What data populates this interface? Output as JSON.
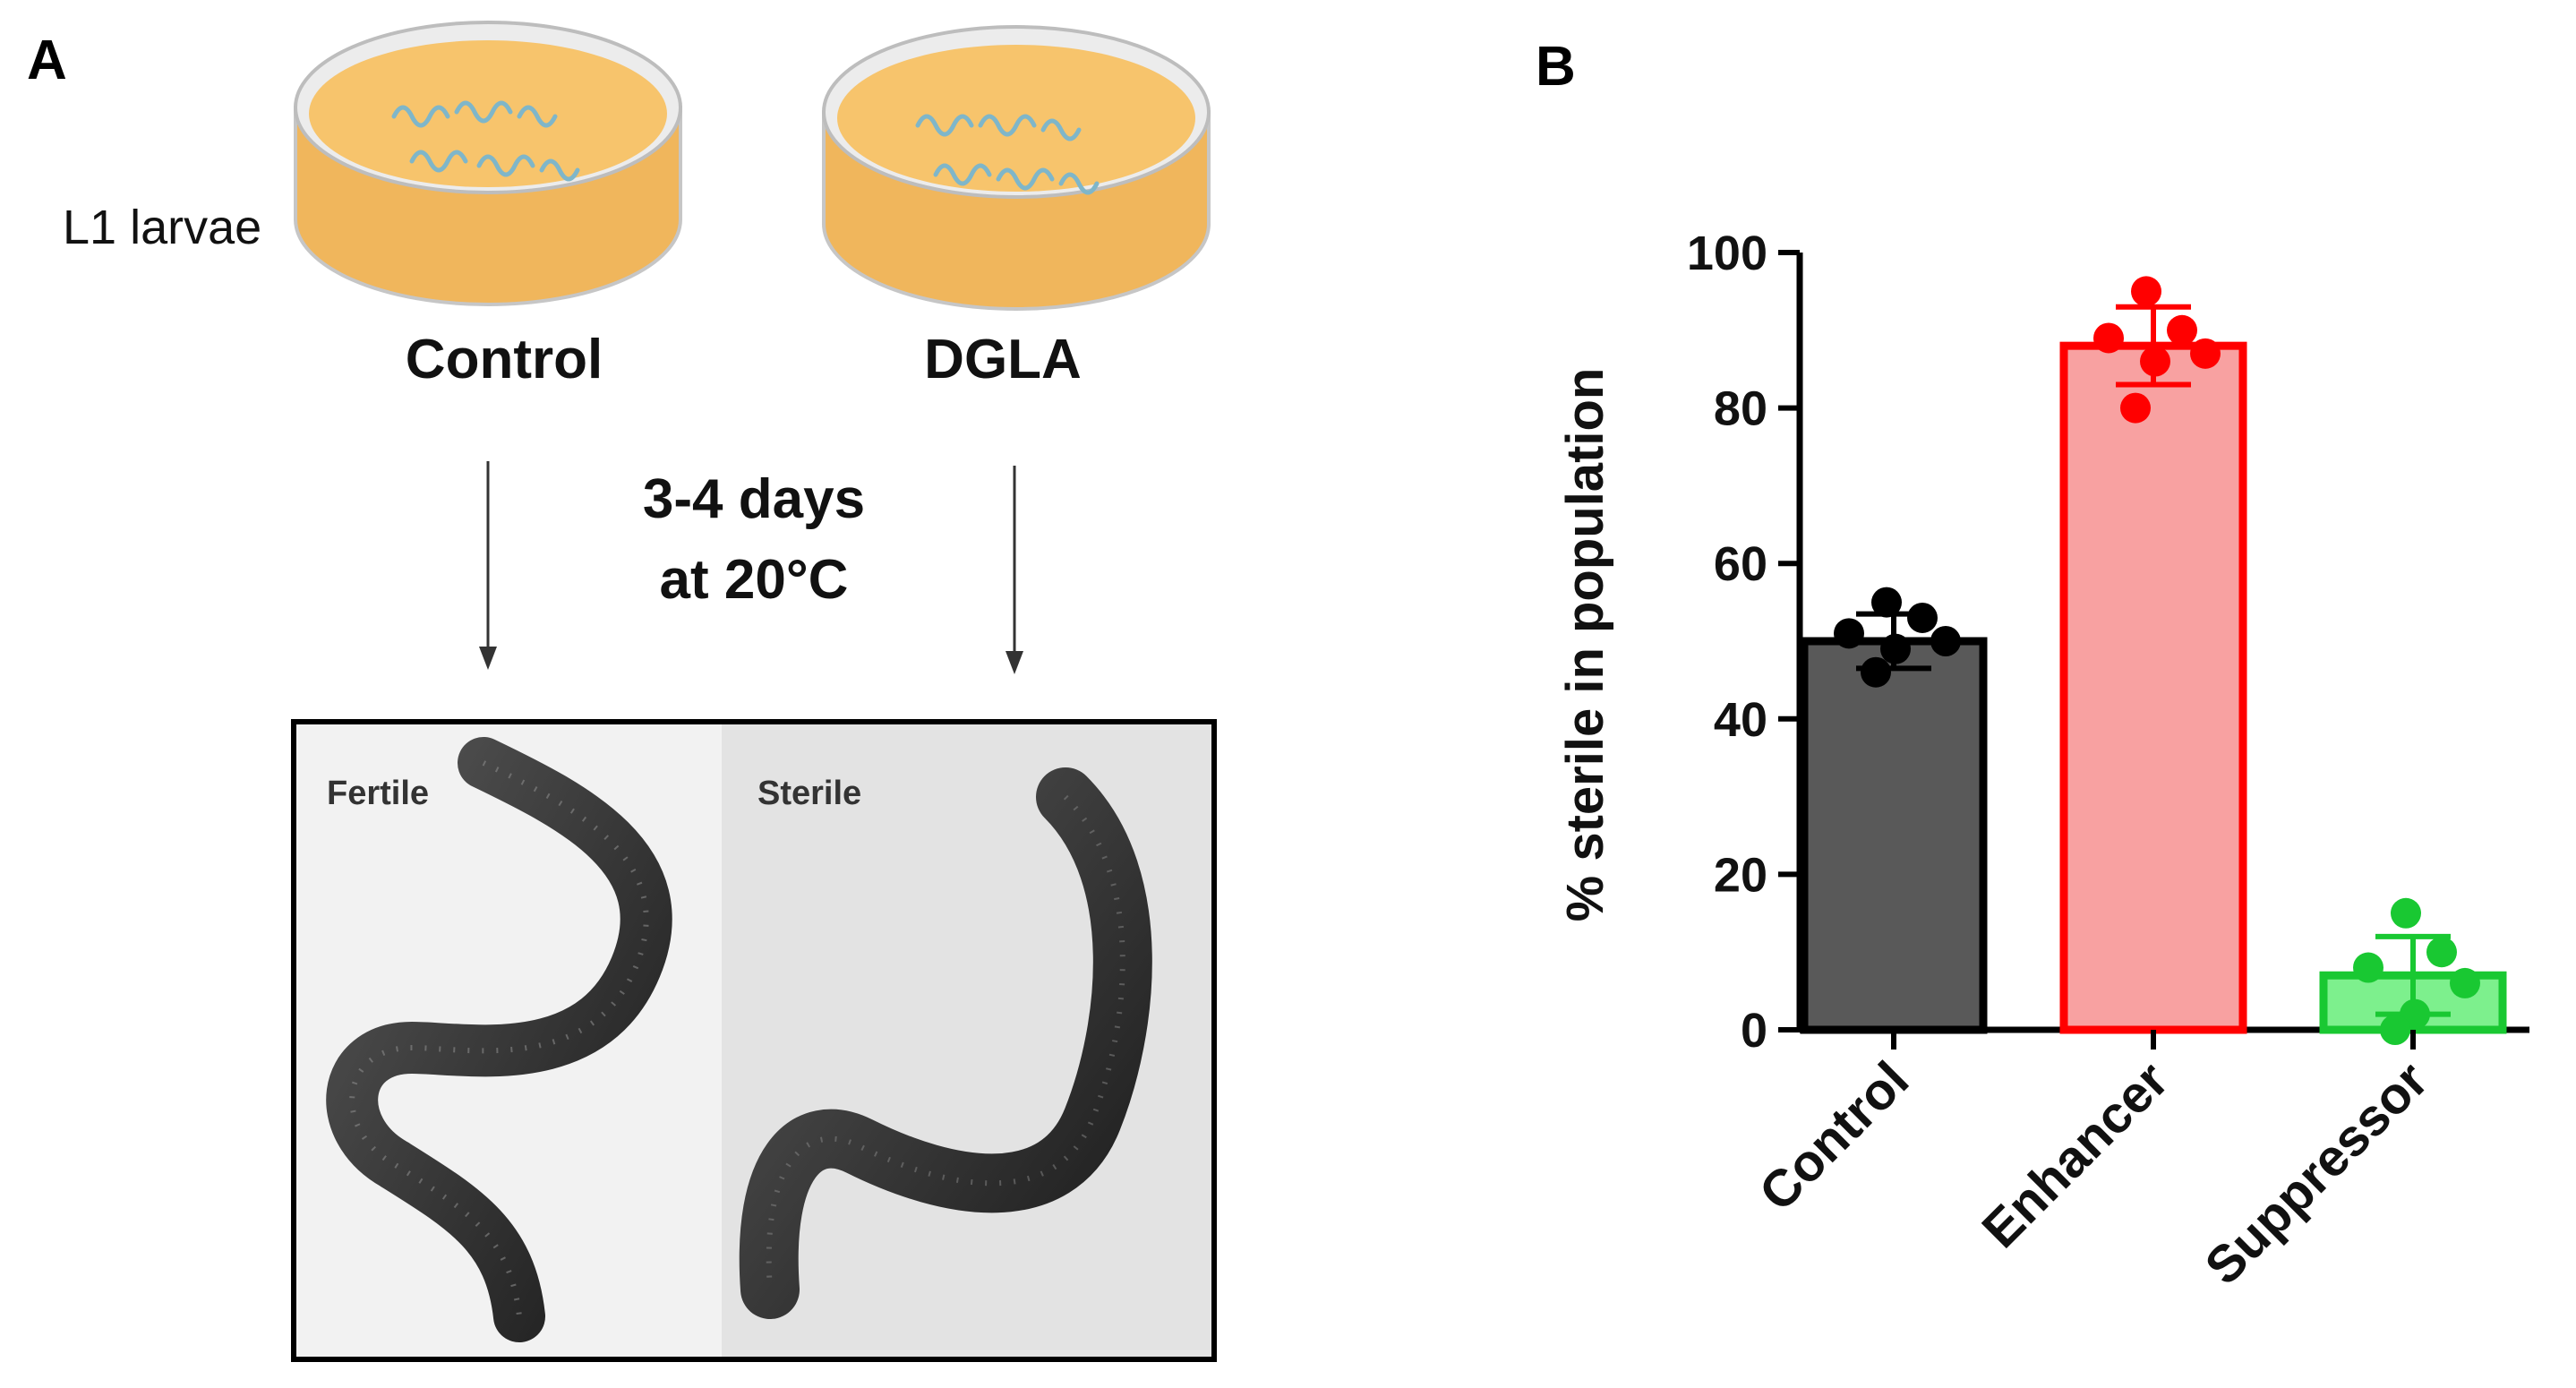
{
  "panel_a": {
    "letter": "A",
    "stage_label": "L1 larvae",
    "dish_left_label": "Control",
    "dish_right_label": "DGLA",
    "incubation_line1": "3-4 days",
    "incubation_line2": "at 20°C",
    "photo_left_label": "Fertile",
    "photo_right_label": "Sterile",
    "colors": {
      "agar": "#f7c46c",
      "dish_rim": "#c8c8c8",
      "worm_icon": "#7fb6c9",
      "photo_bg": "#e8e8e8",
      "worm_body": "#2a2a2a"
    }
  },
  "panel_b": {
    "letter": "B",
    "chart_data": {
      "type": "bar",
      "categories": [
        "Control",
        "Enhancer",
        "Suppressor"
      ],
      "values": [
        50,
        88,
        7
      ],
      "error": [
        3.5,
        5,
        5
      ],
      "points": [
        [
          55,
          53,
          51,
          50,
          49,
          46
        ],
        [
          95,
          90,
          89,
          87,
          86,
          80
        ],
        [
          15,
          10,
          8,
          6,
          2,
          0
        ]
      ],
      "ylabel": "% sterile in population",
      "xlabel": "",
      "ylim": [
        0,
        100
      ],
      "yticks": [
        0,
        20,
        40,
        60,
        80,
        100
      ],
      "bar_fill": [
        "#595959",
        "#f8a1a1",
        "#7df08d"
      ],
      "bar_stroke": [
        "#000000",
        "#ff0000",
        "#19c832"
      ],
      "point_color": [
        "#000000",
        "#ff0000",
        "#19c832"
      ]
    }
  }
}
